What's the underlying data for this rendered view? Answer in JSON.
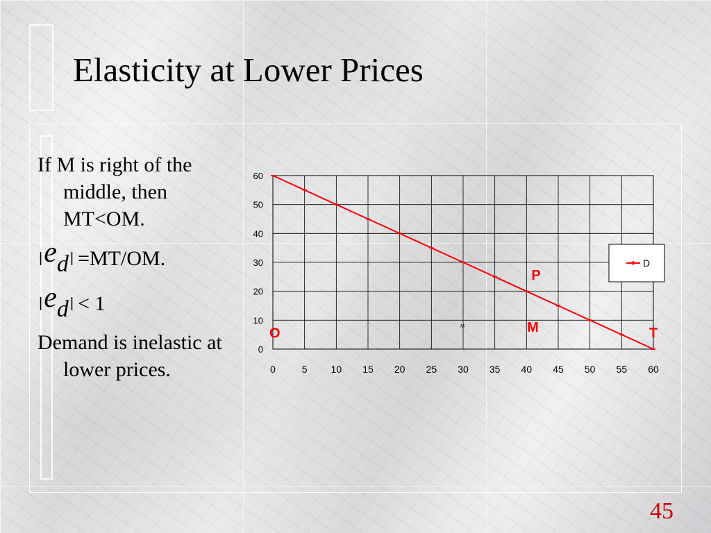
{
  "slide": {
    "title": "Elasticity at Lower Prices",
    "page_number": "45"
  },
  "bullets": {
    "b1": "If M is right of the middle, then MT<OM.",
    "e1_symbol": "e",
    "e1_sub": "d",
    "e1_rest": "=MT/OM.",
    "e2_symbol": "e",
    "e2_sub": "d",
    "e2_rest": "< 1",
    "b4": "Demand is inelastic at lower prices."
  },
  "chart_data": {
    "type": "line",
    "x": [
      0,
      5,
      10,
      15,
      20,
      25,
      30,
      35,
      40,
      45,
      50,
      55,
      60
    ],
    "series": [
      {
        "name": "D",
        "values": [
          60,
          55,
          50,
          45,
          40,
          35,
          30,
          25,
          20,
          15,
          10,
          5,
          0
        ],
        "color": "#ff0000"
      }
    ],
    "xticks": [
      "0",
      "5",
      "10",
      "15",
      "20",
      "25",
      "30",
      "35",
      "40",
      "45",
      "50",
      "55",
      "60"
    ],
    "yticks": [
      "0",
      "10",
      "20",
      "30",
      "40",
      "50",
      "60"
    ],
    "xlim": [
      0,
      60
    ],
    "ylim": [
      0,
      60
    ],
    "grid": true,
    "legend": "right",
    "annotations": [
      {
        "text": "P",
        "x": 41.5,
        "y": 24,
        "color": "#ff0000"
      },
      {
        "text": "M",
        "x": 41,
        "y": 6,
        "color": "#ff0000"
      },
      {
        "text": "O",
        "x": 0.3,
        "y": 4,
        "color": "#ff0000"
      },
      {
        "text": "T",
        "x": 60,
        "y": 4,
        "color": "#ff0000"
      },
      {
        "text": "M",
        "x": 29.9,
        "y": 7.5,
        "color": "#000000"
      }
    ]
  }
}
